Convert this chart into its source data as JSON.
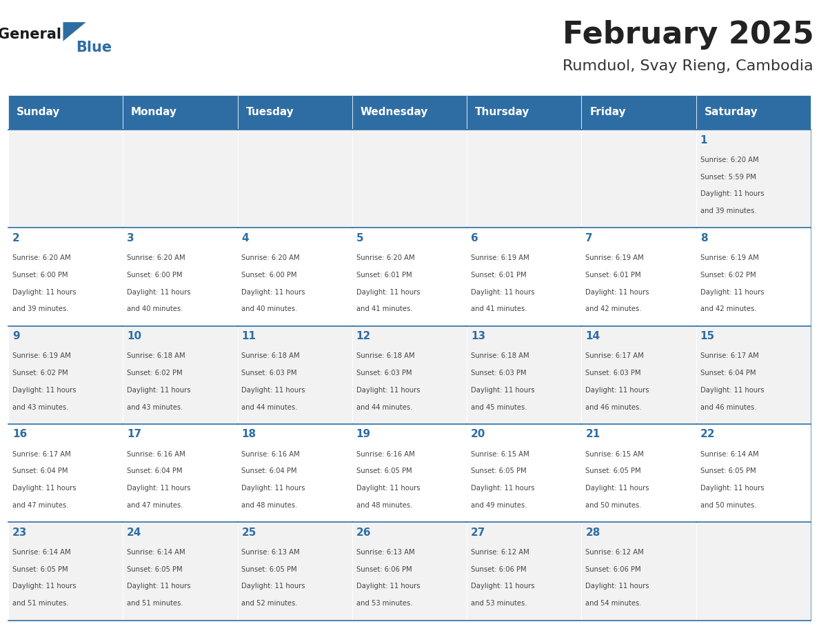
{
  "title": "February 2025",
  "subtitle": "Rumduol, Svay Rieng, Cambodia",
  "header_bg": "#2E6DA4",
  "header_text": "#FFFFFF",
  "cell_bg_light": "#F2F2F2",
  "cell_bg_white": "#FFFFFF",
  "day_names": [
    "Sunday",
    "Monday",
    "Tuesday",
    "Wednesday",
    "Thursday",
    "Friday",
    "Saturday"
  ],
  "title_color": "#222222",
  "subtitle_color": "#333333",
  "line_color": "#2E6DA4",
  "day_num_color": "#2E6DA4",
  "text_color": "#444444",
  "calendar": [
    [
      null,
      null,
      null,
      null,
      null,
      null,
      {
        "day": 1,
        "rise": "6:20 AM",
        "set": "5:59 PM",
        "hours": 11,
        "mins": 39
      }
    ],
    [
      {
        "day": 2,
        "rise": "6:20 AM",
        "set": "6:00 PM",
        "hours": 11,
        "mins": 39
      },
      {
        "day": 3,
        "rise": "6:20 AM",
        "set": "6:00 PM",
        "hours": 11,
        "mins": 40
      },
      {
        "day": 4,
        "rise": "6:20 AM",
        "set": "6:00 PM",
        "hours": 11,
        "mins": 40
      },
      {
        "day": 5,
        "rise": "6:20 AM",
        "set": "6:01 PM",
        "hours": 11,
        "mins": 41
      },
      {
        "day": 6,
        "rise": "6:19 AM",
        "set": "6:01 PM",
        "hours": 11,
        "mins": 41
      },
      {
        "day": 7,
        "rise": "6:19 AM",
        "set": "6:01 PM",
        "hours": 11,
        "mins": 42
      },
      {
        "day": 8,
        "rise": "6:19 AM",
        "set": "6:02 PM",
        "hours": 11,
        "mins": 42
      }
    ],
    [
      {
        "day": 9,
        "rise": "6:19 AM",
        "set": "6:02 PM",
        "hours": 11,
        "mins": 43
      },
      {
        "day": 10,
        "rise": "6:18 AM",
        "set": "6:02 PM",
        "hours": 11,
        "mins": 43
      },
      {
        "day": 11,
        "rise": "6:18 AM",
        "set": "6:03 PM",
        "hours": 11,
        "mins": 44
      },
      {
        "day": 12,
        "rise": "6:18 AM",
        "set": "6:03 PM",
        "hours": 11,
        "mins": 44
      },
      {
        "day": 13,
        "rise": "6:18 AM",
        "set": "6:03 PM",
        "hours": 11,
        "mins": 45
      },
      {
        "day": 14,
        "rise": "6:17 AM",
        "set": "6:03 PM",
        "hours": 11,
        "mins": 46
      },
      {
        "day": 15,
        "rise": "6:17 AM",
        "set": "6:04 PM",
        "hours": 11,
        "mins": 46
      }
    ],
    [
      {
        "day": 16,
        "rise": "6:17 AM",
        "set": "6:04 PM",
        "hours": 11,
        "mins": 47
      },
      {
        "day": 17,
        "rise": "6:16 AM",
        "set": "6:04 PM",
        "hours": 11,
        "mins": 47
      },
      {
        "day": 18,
        "rise": "6:16 AM",
        "set": "6:04 PM",
        "hours": 11,
        "mins": 48
      },
      {
        "day": 19,
        "rise": "6:16 AM",
        "set": "6:05 PM",
        "hours": 11,
        "mins": 48
      },
      {
        "day": 20,
        "rise": "6:15 AM",
        "set": "6:05 PM",
        "hours": 11,
        "mins": 49
      },
      {
        "day": 21,
        "rise": "6:15 AM",
        "set": "6:05 PM",
        "hours": 11,
        "mins": 50
      },
      {
        "day": 22,
        "rise": "6:14 AM",
        "set": "6:05 PM",
        "hours": 11,
        "mins": 50
      }
    ],
    [
      {
        "day": 23,
        "rise": "6:14 AM",
        "set": "6:05 PM",
        "hours": 11,
        "mins": 51
      },
      {
        "day": 24,
        "rise": "6:14 AM",
        "set": "6:05 PM",
        "hours": 11,
        "mins": 51
      },
      {
        "day": 25,
        "rise": "6:13 AM",
        "set": "6:05 PM",
        "hours": 11,
        "mins": 52
      },
      {
        "day": 26,
        "rise": "6:13 AM",
        "set": "6:06 PM",
        "hours": 11,
        "mins": 53
      },
      {
        "day": 27,
        "rise": "6:12 AM",
        "set": "6:06 PM",
        "hours": 11,
        "mins": 53
      },
      {
        "day": 28,
        "rise": "6:12 AM",
        "set": "6:06 PM",
        "hours": 11,
        "mins": 54
      },
      null
    ]
  ]
}
